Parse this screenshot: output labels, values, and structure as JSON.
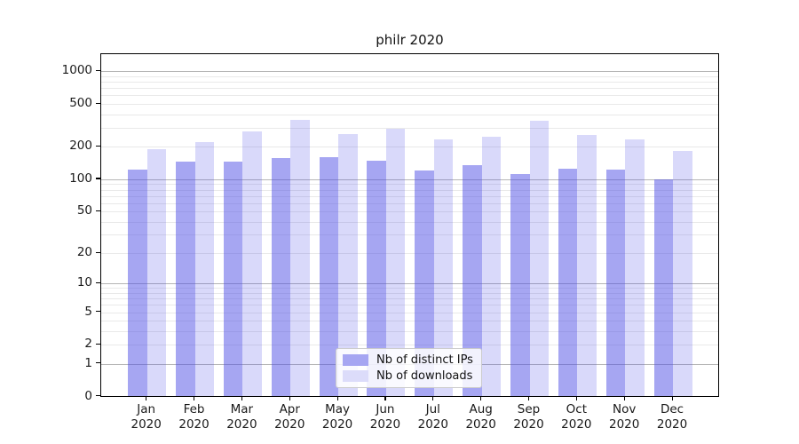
{
  "title": "philr 2020",
  "legend": {
    "items": [
      {
        "label": "Nb of distinct IPs",
        "swatch_color": "#a6a6f2"
      },
      {
        "label": "Nb of downloads",
        "swatch_color": "#dcdcfa"
      }
    ]
  },
  "chart_data": {
    "type": "bar",
    "title": "philr 2020",
    "yscale": "log1p",
    "ylim": [
      0,
      1430
    ],
    "grid": true,
    "legend_position": "lower-center",
    "ytick_values": [
      0,
      1,
      2,
      5,
      10,
      20,
      50,
      100,
      200,
      500,
      1000
    ],
    "ytick_labels": [
      "0",
      "1",
      "2",
      "5",
      "10",
      "20",
      "50",
      "100",
      "200",
      "500",
      "1000"
    ],
    "major_gridlines": [
      1,
      10,
      100,
      1000
    ],
    "minor_gridlines": [
      2,
      3,
      4,
      5,
      6,
      7,
      8,
      9,
      20,
      30,
      40,
      50,
      60,
      70,
      80,
      90,
      200,
      300,
      400,
      500,
      600,
      700,
      800,
      900
    ],
    "categories": [
      [
        "Jan",
        "2020"
      ],
      [
        "Feb",
        "2020"
      ],
      [
        "Mar",
        "2020"
      ],
      [
        "Apr",
        "2020"
      ],
      [
        "May",
        "2020"
      ],
      [
        "Jun",
        "2020"
      ],
      [
        "Jul",
        "2020"
      ],
      [
        "Aug",
        "2020"
      ],
      [
        "Sep",
        "2020"
      ],
      [
        "Oct",
        "2020"
      ],
      [
        "Nov",
        "2020"
      ],
      [
        "Dec",
        "2020"
      ]
    ],
    "series": [
      {
        "name": "Nb of distinct IPs",
        "color": "rgba(77,77,230,0.50)",
        "swatch_color": "#a6a6f2",
        "values": [
          124,
          145,
          147,
          159,
          162,
          150,
          120,
          135,
          111,
          126,
          124,
          100
        ]
      },
      {
        "name": "Nb of downloads",
        "color": "rgba(77,77,230,0.21)",
        "swatch_color": "#dcdcfa",
        "values": [
          192,
          220,
          280,
          355,
          264,
          294,
          234,
          250,
          350,
          260,
          234,
          185
        ]
      }
    ]
  }
}
